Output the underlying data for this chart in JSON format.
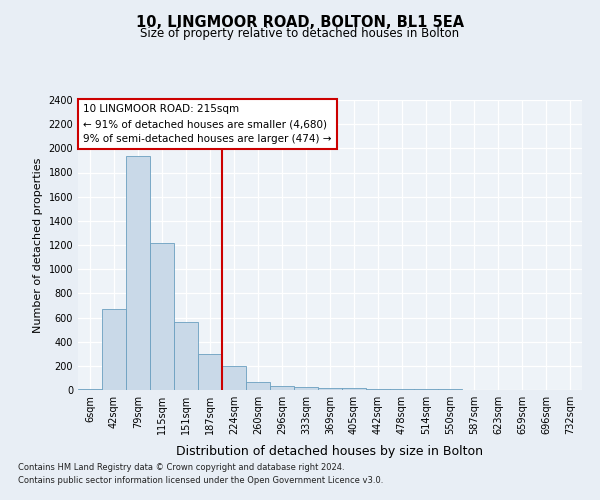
{
  "title1": "10, LINGMOOR ROAD, BOLTON, BL1 5EA",
  "title2": "Size of property relative to detached houses in Bolton",
  "xlabel": "Distribution of detached houses by size in Bolton",
  "ylabel": "Number of detached properties",
  "footnote1": "Contains HM Land Registry data © Crown copyright and database right 2024.",
  "footnote2": "Contains public sector information licensed under the Open Government Licence v3.0.",
  "bar_labels": [
    "6sqm",
    "42sqm",
    "79sqm",
    "115sqm",
    "151sqm",
    "187sqm",
    "224sqm",
    "260sqm",
    "296sqm",
    "333sqm",
    "369sqm",
    "405sqm",
    "442sqm",
    "478sqm",
    "514sqm",
    "550sqm",
    "587sqm",
    "623sqm",
    "659sqm",
    "696sqm",
    "732sqm"
  ],
  "bar_values": [
    5,
    670,
    1940,
    1215,
    565,
    300,
    195,
    70,
    35,
    25,
    20,
    15,
    10,
    10,
    5,
    5,
    0,
    0,
    0,
    0,
    0
  ],
  "bar_color": "#c9d9e8",
  "bar_edge_color": "#6a9fc0",
  "property_label": "10 LINGMOOR ROAD: 215sqm",
  "annotation_line1": "← 91% of detached houses are smaller (4,680)",
  "annotation_line2": "9% of semi-detached houses are larger (474) →",
  "vline_bar_index": 6,
  "vline_color": "#cc0000",
  "annotation_box_color": "#cc0000",
  "ylim": [
    0,
    2400
  ],
  "yticks": [
    0,
    200,
    400,
    600,
    800,
    1000,
    1200,
    1400,
    1600,
    1800,
    2000,
    2200,
    2400
  ],
  "bg_color": "#e8eef5",
  "plot_bg_color": "#eef3f8",
  "title1_fontsize": 10.5,
  "title2_fontsize": 8.5,
  "ylabel_fontsize": 8,
  "xlabel_fontsize": 9,
  "tick_fontsize": 7,
  "annot_fontsize": 7.5,
  "footnote_fontsize": 6.0
}
